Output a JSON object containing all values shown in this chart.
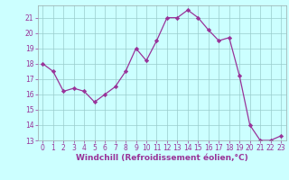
{
  "x": [
    0,
    1,
    2,
    3,
    4,
    5,
    6,
    7,
    8,
    9,
    10,
    11,
    12,
    13,
    14,
    15,
    16,
    17,
    18,
    19,
    20,
    21,
    22,
    23
  ],
  "y": [
    18.0,
    17.5,
    16.2,
    16.4,
    16.2,
    15.5,
    16.0,
    16.5,
    17.5,
    19.0,
    18.2,
    19.5,
    21.0,
    21.0,
    21.5,
    21.0,
    20.2,
    19.5,
    19.7,
    17.2,
    14.0,
    13.0,
    13.0,
    13.3
  ],
  "line_color": "#993399",
  "marker": "D",
  "marker_size": 2.2,
  "bg_color": "#ccffff",
  "grid_color": "#99cccc",
  "xlabel": "Windchill (Refroidissement éolien,°C)",
  "xlim": [
    -0.5,
    23.5
  ],
  "ylim": [
    13,
    21.8
  ],
  "yticks": [
    13,
    14,
    15,
    16,
    17,
    18,
    19,
    20,
    21
  ],
  "xticks": [
    0,
    1,
    2,
    3,
    4,
    5,
    6,
    7,
    8,
    9,
    10,
    11,
    12,
    13,
    14,
    15,
    16,
    17,
    18,
    19,
    20,
    21,
    22,
    23
  ],
  "tick_color": "#993399",
  "tick_fontsize": 5.5,
  "xlabel_fontsize": 6.5,
  "xlabel_color": "#993399",
  "line_width": 0.9
}
